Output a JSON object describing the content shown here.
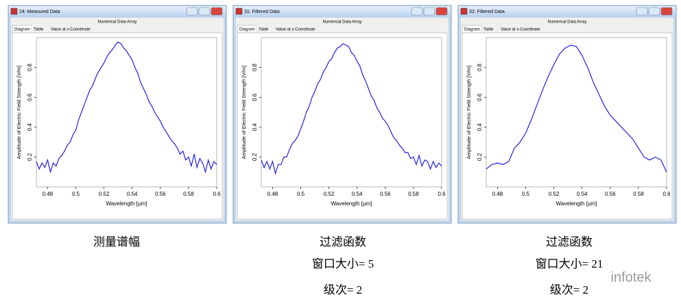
{
  "windows": [
    {
      "title": "24: Measured Data",
      "subtitle": "Numerical Data Array",
      "tabs": [
        "Diagram",
        "Table",
        "Value at x-Coordinate"
      ]
    },
    {
      "title": "31: Filtered Data",
      "subtitle": "Numerical Data Array",
      "tabs": [
        "Diagram",
        "Table",
        "Value at x-Coordinate"
      ]
    },
    {
      "title": "32: Filtered Data",
      "subtitle": "Numerical Data Array",
      "tabs": [
        "Diagram",
        "Table",
        "Value at x-Coordinate"
      ]
    }
  ],
  "chart_data": [
    {
      "type": "line",
      "xlabel": "Wavelength [µm]",
      "ylabel": "Amplitude of Electric Field Strength [V/m]",
      "color": "#1f1fe0",
      "xlim": [
        0.472,
        0.6
      ],
      "ylim": [
        0,
        1
      ],
      "xticks": [
        0.48,
        0.5,
        0.52,
        0.54,
        0.56,
        0.58,
        0.6
      ],
      "yticks": [
        0.2,
        0.4,
        0.6,
        0.8
      ],
      "x": [
        0.472,
        0.474,
        0.476,
        0.478,
        0.48,
        0.482,
        0.484,
        0.486,
        0.488,
        0.49,
        0.492,
        0.494,
        0.496,
        0.498,
        0.5,
        0.502,
        0.504,
        0.506,
        0.508,
        0.51,
        0.512,
        0.514,
        0.516,
        0.518,
        0.52,
        0.522,
        0.524,
        0.526,
        0.528,
        0.53,
        0.532,
        0.534,
        0.536,
        0.538,
        0.54,
        0.542,
        0.544,
        0.546,
        0.548,
        0.55,
        0.552,
        0.554,
        0.556,
        0.558,
        0.56,
        0.562,
        0.564,
        0.566,
        0.568,
        0.57,
        0.572,
        0.574,
        0.576,
        0.578,
        0.58,
        0.582,
        0.584,
        0.586,
        0.588,
        0.59,
        0.592,
        0.594,
        0.596,
        0.598,
        0.6
      ],
      "values": [
        0.17,
        0.12,
        0.16,
        0.13,
        0.18,
        0.1,
        0.16,
        0.14,
        0.19,
        0.21,
        0.24,
        0.28,
        0.3,
        0.35,
        0.38,
        0.45,
        0.5,
        0.55,
        0.6,
        0.65,
        0.68,
        0.73,
        0.77,
        0.8,
        0.83,
        0.87,
        0.9,
        0.92,
        0.95,
        0.97,
        0.96,
        0.93,
        0.91,
        0.88,
        0.85,
        0.8,
        0.76,
        0.7,
        0.66,
        0.62,
        0.57,
        0.54,
        0.5,
        0.47,
        0.44,
        0.4,
        0.37,
        0.34,
        0.31,
        0.29,
        0.26,
        0.22,
        0.24,
        0.18,
        0.2,
        0.14,
        0.22,
        0.13,
        0.19,
        0.16,
        0.1,
        0.18,
        0.12,
        0.17,
        0.15
      ]
    },
    {
      "type": "line",
      "xlabel": "Wavelength [µm]",
      "ylabel": "Amplitude of Electric Field Strength [V/m]",
      "color": "#1f1fe0",
      "xlim": [
        0.472,
        0.6
      ],
      "ylim": [
        0,
        1
      ],
      "xticks": [
        0.48,
        0.5,
        0.52,
        0.54,
        0.56,
        0.58,
        0.6
      ],
      "yticks": [
        0.2,
        0.4,
        0.6,
        0.8
      ],
      "x": [
        0.472,
        0.474,
        0.476,
        0.478,
        0.48,
        0.482,
        0.484,
        0.486,
        0.488,
        0.49,
        0.492,
        0.494,
        0.496,
        0.498,
        0.5,
        0.502,
        0.504,
        0.506,
        0.508,
        0.51,
        0.512,
        0.514,
        0.516,
        0.518,
        0.52,
        0.522,
        0.524,
        0.526,
        0.528,
        0.53,
        0.532,
        0.534,
        0.536,
        0.538,
        0.54,
        0.542,
        0.544,
        0.546,
        0.548,
        0.55,
        0.552,
        0.554,
        0.556,
        0.558,
        0.56,
        0.562,
        0.564,
        0.566,
        0.568,
        0.57,
        0.572,
        0.574,
        0.576,
        0.578,
        0.58,
        0.582,
        0.584,
        0.586,
        0.588,
        0.59,
        0.592,
        0.594,
        0.596,
        0.598,
        0.6
      ],
      "values": [
        0.18,
        0.13,
        0.17,
        0.12,
        0.17,
        0.09,
        0.15,
        0.15,
        0.2,
        0.2,
        0.25,
        0.29,
        0.31,
        0.34,
        0.39,
        0.44,
        0.5,
        0.54,
        0.6,
        0.64,
        0.69,
        0.72,
        0.77,
        0.8,
        0.84,
        0.86,
        0.9,
        0.93,
        0.94,
        0.96,
        0.95,
        0.94,
        0.9,
        0.88,
        0.84,
        0.81,
        0.75,
        0.71,
        0.66,
        0.61,
        0.58,
        0.53,
        0.5,
        0.46,
        0.44,
        0.41,
        0.37,
        0.33,
        0.31,
        0.28,
        0.26,
        0.23,
        0.23,
        0.19,
        0.2,
        0.15,
        0.21,
        0.14,
        0.18,
        0.17,
        0.12,
        0.17,
        0.13,
        0.16,
        0.14
      ]
    },
    {
      "type": "line",
      "xlabel": "Wavelength [µm]",
      "ylabel": "Amplitude of Electric Field Strength [V/m]",
      "color": "#1f1fe0",
      "xlim": [
        0.472,
        0.6
      ],
      "ylim": [
        0,
        1
      ],
      "xticks": [
        0.48,
        0.5,
        0.52,
        0.54,
        0.56,
        0.58,
        0.6
      ],
      "yticks": [
        0.2,
        0.4,
        0.6,
        0.8
      ],
      "x": [
        0.472,
        0.476,
        0.48,
        0.484,
        0.488,
        0.492,
        0.496,
        0.5,
        0.504,
        0.508,
        0.512,
        0.516,
        0.52,
        0.524,
        0.528,
        0.532,
        0.536,
        0.54,
        0.544,
        0.548,
        0.552,
        0.556,
        0.56,
        0.564,
        0.568,
        0.572,
        0.576,
        0.58,
        0.584,
        0.588,
        0.592,
        0.596,
        0.6
      ],
      "values": [
        0.12,
        0.15,
        0.16,
        0.15,
        0.17,
        0.26,
        0.3,
        0.36,
        0.45,
        0.55,
        0.65,
        0.74,
        0.82,
        0.89,
        0.93,
        0.95,
        0.94,
        0.88,
        0.8,
        0.7,
        0.62,
        0.54,
        0.48,
        0.44,
        0.4,
        0.36,
        0.32,
        0.26,
        0.2,
        0.18,
        0.2,
        0.18,
        0.1
      ]
    }
  ],
  "captions": [
    [
      "测量谱幅"
    ],
    [
      "过滤函数",
      "窗口大小= 5",
      "级次= 2"
    ],
    [
      "过滤函数",
      "窗口大小= 21",
      "级次= 2"
    ]
  ],
  "watermark": "infotek"
}
